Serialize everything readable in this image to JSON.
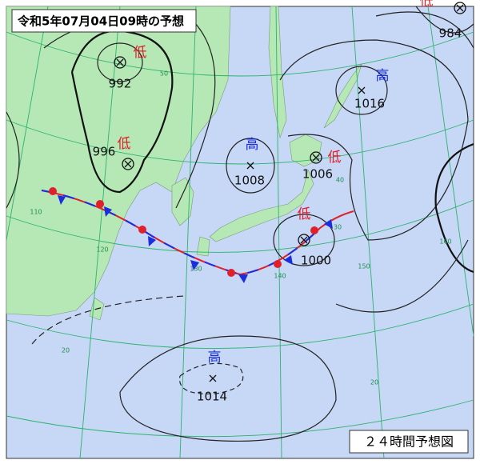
{
  "header": {
    "title": "令和5年07月04日09時の予想"
  },
  "footer": {
    "label": "２４時間予想図"
  },
  "systems": [
    {
      "symbol": "低",
      "pressure": "992"
    },
    {
      "symbol": "低",
      "pressure": "996"
    },
    {
      "symbol": "高",
      "pressure": "1008"
    },
    {
      "symbol": "低",
      "pressure": "1006"
    },
    {
      "symbol": "高",
      "pressure": "1016"
    },
    {
      "symbol": "低",
      "pressure": "984"
    },
    {
      "symbol": "低",
      "pressure": "1000"
    },
    {
      "symbol": "高",
      "pressure": "1014"
    }
  ],
  "grid_labels": [
    "50",
    "40",
    "30",
    "20",
    "20",
    "110",
    "120",
    "130",
    "140",
    "150",
    "160"
  ]
}
